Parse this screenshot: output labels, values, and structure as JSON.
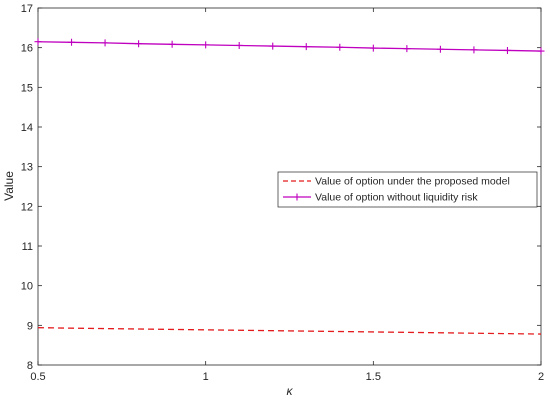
{
  "chart_data": {
    "type": "line",
    "title": "",
    "xlabel": "κ",
    "ylabel": "Value",
    "xlim": [
      0.5,
      2
    ],
    "ylim": [
      8,
      17
    ],
    "x_ticks": [
      0.5,
      1,
      1.5,
      2
    ],
    "x_tick_labels": [
      "0.5",
      "1",
      "1.5",
      "2"
    ],
    "y_ticks": [
      8,
      9,
      10,
      11,
      12,
      13,
      14,
      15,
      16,
      17
    ],
    "y_tick_labels": [
      "8",
      "9",
      "10",
      "11",
      "12",
      "13",
      "14",
      "15",
      "16",
      "17"
    ],
    "grid": false,
    "legend_position": "center-right",
    "series": [
      {
        "name": "Value of option under the proposed model",
        "color": "#e41a1c",
        "line_style": "dashed",
        "marker": "none",
        "x": [
          0.5,
          2
        ],
        "y": [
          8.94,
          8.78
        ]
      },
      {
        "name": "Value of option without liquidity risk",
        "color": "#bf00bf",
        "line_style": "solid",
        "marker": "plus",
        "x": [
          0.5,
          0.6,
          0.7,
          0.8,
          0.9,
          1.0,
          1.1,
          1.2,
          1.3,
          1.4,
          1.5,
          1.6,
          1.7,
          1.8,
          1.9,
          2.0
        ],
        "y": [
          16.15,
          16.135,
          16.12,
          16.1,
          16.085,
          16.07,
          16.055,
          16.04,
          16.025,
          16.01,
          15.99,
          15.975,
          15.96,
          15.945,
          15.93,
          15.915
        ]
      }
    ]
  }
}
